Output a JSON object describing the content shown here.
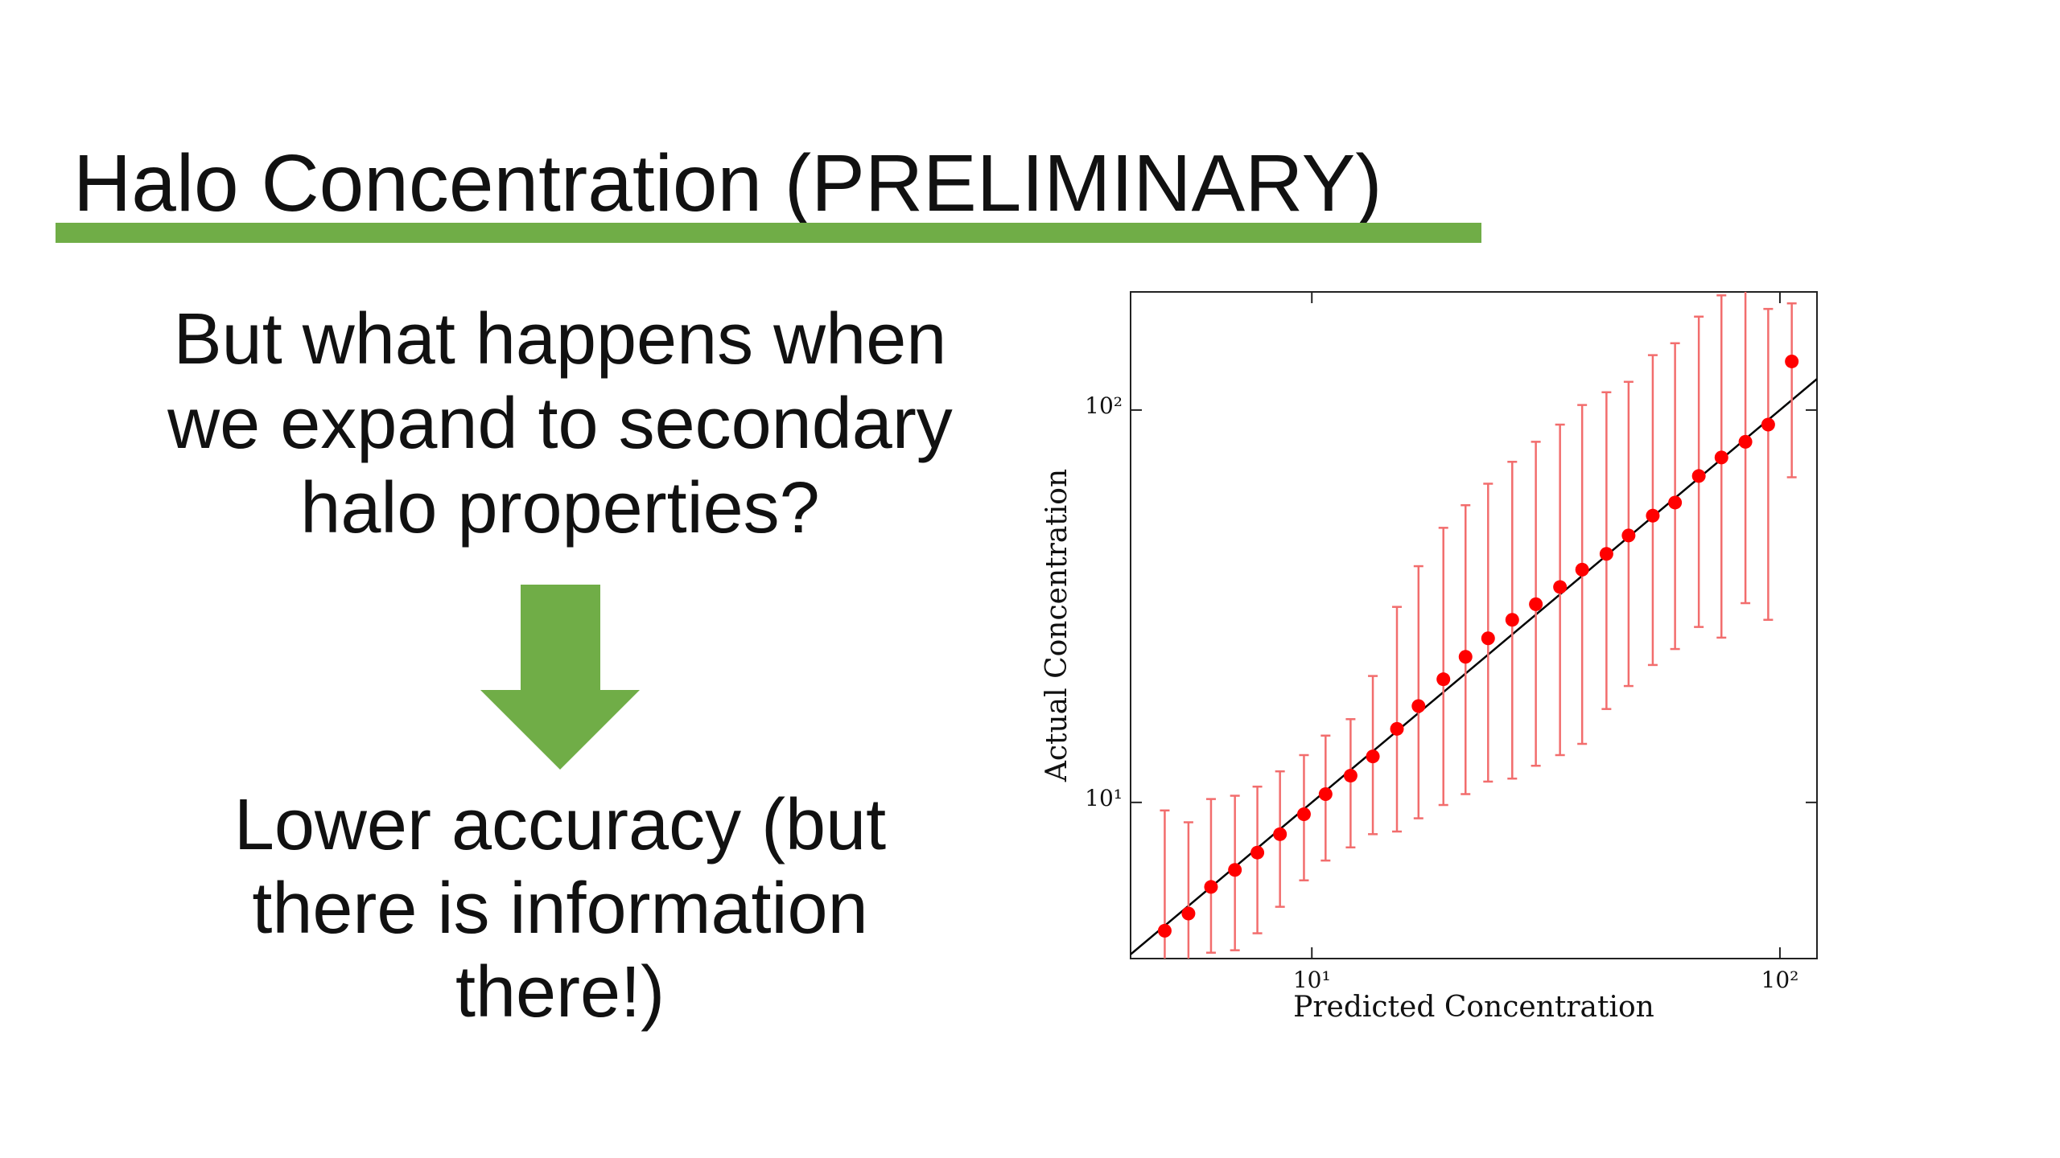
{
  "slide": {
    "title": "Halo Concentration (PRELIMINARY)",
    "question_lines": [
      "But what happens when",
      "we expand to secondary",
      "halo properties?"
    ],
    "answer_lines": [
      "Lower accuracy (but",
      "there is information",
      "there!)"
    ]
  },
  "chart_data": {
    "type": "scatter",
    "x_label": "Predicted Concentration",
    "y_label": "Actual Concentration",
    "x_log": true,
    "y_log": true,
    "xlim": [
      4.1,
      120
    ],
    "ylim": [
      4.0,
      200
    ],
    "xticks": [
      {
        "value": 10,
        "label": "10¹"
      },
      {
        "value": 100,
        "label": "10²"
      }
    ],
    "yticks": [
      {
        "value": 10,
        "label": "10¹"
      },
      {
        "value": 100,
        "label": "10²"
      }
    ],
    "reference_line_color": "#000000",
    "x": [
      4.85,
      5.45,
      6.09,
      6.85,
      7.65,
      8.55,
      9.62,
      10.7,
      12.1,
      13.5,
      15.2,
      16.9,
      19.1,
      21.3,
      23.8,
      26.8,
      30.1,
      33.9,
      37.8,
      42.6,
      47.5,
      53.5,
      59.7,
      67.1,
      75.0,
      84.4,
      94.4,
      106
    ],
    "series": [
      {
        "color": "#ff0000",
        "error_color": "#f26d6d",
        "values": [
          4.71,
          5.21,
          6.09,
          6.73,
          7.45,
          8.3,
          9.33,
          10.5,
          11.7,
          13.1,
          15.4,
          17.6,
          20.6,
          23.5,
          26.2,
          29.2,
          32.0,
          35.4,
          39.2,
          43.0,
          47.9,
          53.8,
          58.1,
          67.9,
          75.7,
          83.0,
          91.8,
          133
        ],
        "lower": [
          3.5,
          3.8,
          4.14,
          4.2,
          4.64,
          5.42,
          6.33,
          7.11,
          7.68,
          8.3,
          8.43,
          9.11,
          9.85,
          10.5,
          11.3,
          11.5,
          12.4,
          13.2,
          14.1,
          17.3,
          19.8,
          22.4,
          24.6,
          28.0,
          26.3,
          32.2,
          29.2,
          67.4
        ],
        "upper": [
          9.54,
          8.9,
          10.2,
          10.4,
          10.97,
          12.0,
          13.2,
          14.8,
          16.3,
          21.0,
          31.5,
          40.0,
          50.1,
          57.2,
          64.9,
          73.8,
          83.0,
          91.8,
          103,
          111,
          118,
          138,
          148,
          173,
          196,
          230,
          181,
          187
        ]
      }
    ]
  }
}
